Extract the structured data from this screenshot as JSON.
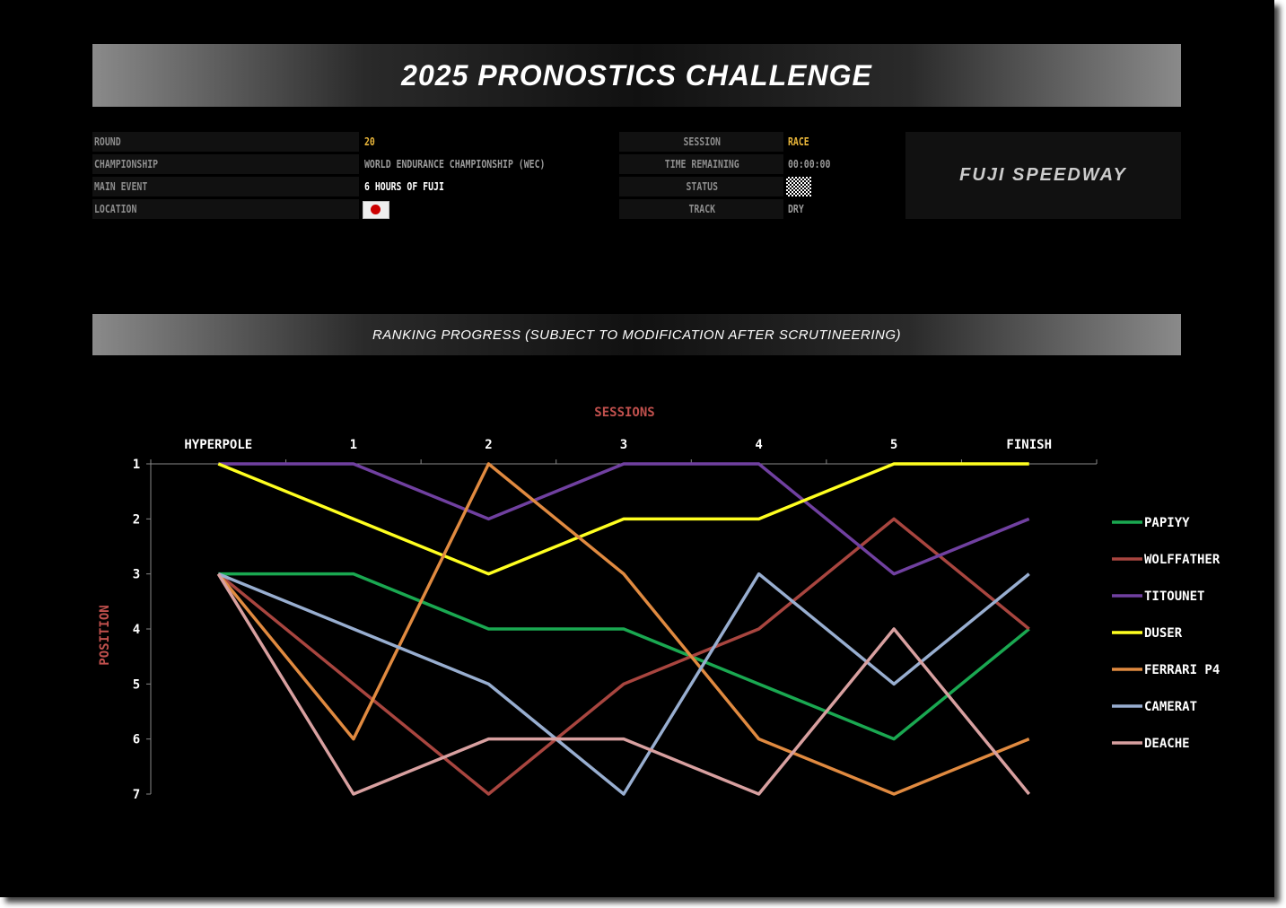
{
  "title": "2025 PRONOSTICS CHALLENGE",
  "info_left": [
    {
      "label": "ROUND",
      "value": "20",
      "color": "#e8b53a"
    },
    {
      "label": "CHAMPIONSHIP",
      "value": "WORLD ENDURANCE CHAMPIONSHIP (WEC)",
      "color": "#9a9a9a"
    },
    {
      "label": "MAIN EVENT",
      "value": "6 HOURS OF FUJI",
      "color": "#ffffff"
    },
    {
      "label": "LOCATION",
      "value": "",
      "icon": "japan-flag-icon"
    }
  ],
  "info_right": [
    {
      "label": "SESSION",
      "value": "RACE",
      "color": "#e8b53a"
    },
    {
      "label": "TIME REMAINING",
      "value": "00:00:00",
      "color": "#9a9a9a"
    },
    {
      "label": "STATUS",
      "value": "",
      "icon": "checkered-flag-icon"
    },
    {
      "label": "TRACK",
      "value": "DRY",
      "color": "#9a9a9a"
    }
  ],
  "logo": "FUJI SPEEDWAY",
  "subtitle": "RANKING PROGRESS (SUBJECT TO MODIFICATION AFTER SCRUTINEERING)",
  "chart_data": {
    "type": "line",
    "xlabel": "SESSIONS",
    "ylabel": "POSITION",
    "categories": [
      "HYPERPOLE",
      "1",
      "2",
      "3",
      "4",
      "5",
      "FINISH"
    ],
    "ylim": [
      1,
      7
    ],
    "y_inverted": true,
    "yticks": [
      1,
      2,
      3,
      4,
      5,
      6,
      7
    ],
    "legend_placement": "right",
    "series": [
      {
        "name": "PAPIYY",
        "color": "#1aa851",
        "values": [
          3,
          3,
          4,
          4,
          5,
          6,
          4
        ]
      },
      {
        "name": "WOLFFATHER",
        "color": "#a8453f",
        "values": [
          3,
          5,
          7,
          5,
          4,
          2,
          4
        ]
      },
      {
        "name": "TITOUNET",
        "color": "#7040a0",
        "values": [
          1,
          1,
          2,
          1,
          1,
          3,
          2
        ]
      },
      {
        "name": "DUSER",
        "color": "#ffff20",
        "values": [
          1,
          2,
          3,
          2,
          2,
          1,
          1
        ]
      },
      {
        "name": "FERRARI P4",
        "color": "#e08a40",
        "values": [
          3,
          6,
          1,
          3,
          6,
          7,
          6
        ]
      },
      {
        "name": "CAMERAT",
        "color": "#98aed0",
        "values": [
          3,
          4,
          5,
          7,
          3,
          5,
          3
        ]
      },
      {
        "name": "DEACHE",
        "color": "#d8a0a0",
        "values": [
          3,
          7,
          6,
          6,
          7,
          4,
          7
        ]
      }
    ]
  }
}
